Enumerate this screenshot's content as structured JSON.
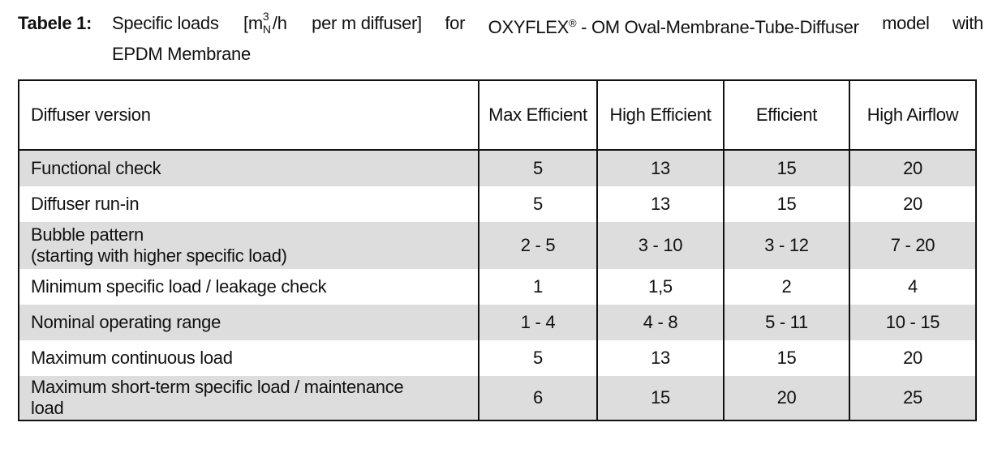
{
  "caption": {
    "label": "Tabele 1:",
    "text_before_unit": "Specific loads",
    "unit_open": "[",
    "unit_base": "m",
    "unit_sup": "3",
    "unit_sub": "N",
    "unit_rest": "/h",
    "unit_tail": "per m diffuser]",
    "word_for": "for",
    "brand": "OXYFLEX",
    "registered": "®",
    "text_after_brand": "- OM Oval-Membrane-Tube-Diffuser",
    "word_model": "model",
    "word_with": "with",
    "line2": "EPDM Membrane"
  },
  "table": {
    "headers": [
      "Diffuser version",
      "Max Efficient",
      "High Efficient",
      "Efficient",
      "High Airflow"
    ],
    "rows": [
      {
        "label": "Functional check",
        "values": [
          "5",
          "13",
          "15",
          "20"
        ]
      },
      {
        "label": "Diffuser run-in",
        "values": [
          "5",
          "13",
          "15",
          "20"
        ]
      },
      {
        "label": "Bubble pattern",
        "label2": "(starting with higher specific load)",
        "values": [
          "2 - 5",
          "3 - 10",
          "3 - 12",
          "7 - 20"
        ]
      },
      {
        "label": "Minimum specific load / leakage check",
        "values": [
          "1",
          "1,5",
          "2",
          "4"
        ]
      },
      {
        "label": "Nominal operating range",
        "values": [
          "1 - 4",
          "4 - 8",
          "5 - 11",
          "10 - 15"
        ]
      },
      {
        "label": "Maximum continuous load",
        "values": [
          "5",
          "13",
          "15",
          "20"
        ]
      },
      {
        "label": "Maximum short-term specific load / maintenance",
        "label2": "load",
        "values": [
          "6",
          "15",
          "20",
          "25"
        ]
      }
    ]
  }
}
